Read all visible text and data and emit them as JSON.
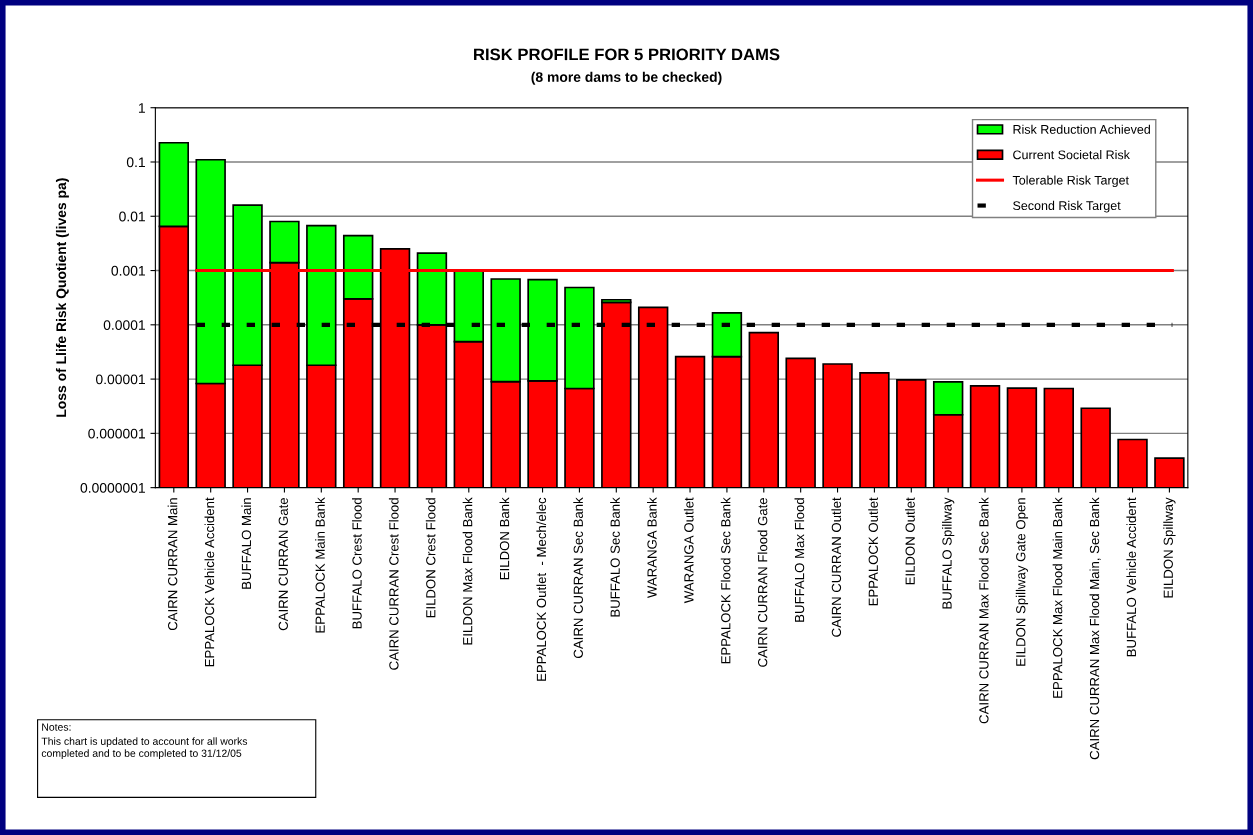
{
  "chart_data": {
    "type": "bar",
    "title": "RISK PROFILE FOR 5 PRIORITY DAMS",
    "subtitle": "(8 more dams to be checked)",
    "ylabel": "Loss of Llife Risk Quotient (lives pa)",
    "categories": [
      "CAIRN CURRAN Main",
      "EPPALOCK Vehicle Accident",
      "BUFFALO Main",
      "CAIRN CURRAN Gate",
      "EPPALOCK Main Bank",
      "BUFFALO Crest Flood",
      "CAIRN CURRAN Crest Flood",
      "EILDON Crest Flood",
      "EILDON Max Flood Bank",
      "EILDON Bank",
      "EPPALOCK Outlet  - Mech/elec",
      "CAIRN CURRAN Sec Bank",
      "BUFFALO Sec Bank",
      "WARANGA Bank",
      "WARANGA Outlet",
      "EPPALOCK Flood Sec Bank",
      "CAIRN CURRAN Flood Gate",
      "BUFFALO Max Flood",
      "CAIRN CURRAN Outlet",
      "EPPALOCK Outlet",
      "EILDON Outlet",
      "BUFFALO Spillway",
      "CAIRN CURRAN Max Flood Sec Bank",
      "EILDON Spillway Gate Open",
      "EPPALOCK Max Flood Main Bank",
      "CAIRN CURRAN Max Flood Main, Sec Bank",
      "BUFFALO Vehicle Accident",
      "EILDON Spillway"
    ],
    "series": [
      {
        "name": "Current Societal Risk",
        "color": "#ff0000",
        "values": [
          0.0065,
          8.3e-06,
          1.8e-05,
          0.0014,
          1.8e-05,
          0.0003,
          0.0025,
          0.0001,
          4.9e-05,
          9e-06,
          9.3e-06,
          6.7e-06,
          0.00026,
          0.00021,
          2.6e-05,
          2.6e-05,
          7.2e-05,
          2.4e-05,
          1.9e-05,
          1.3e-05,
          9.7e-06,
          2.2e-06,
          7.5e-06,
          6.8e-06,
          6.7e-06,
          2.9e-06,
          7.7e-07,
          3.5e-07
        ]
      },
      {
        "name": "Risk Reduction Achieved",
        "color": "#00ff00",
        "values": [
          0.22,
          0.11,
          0.016,
          0.0066,
          0.0067,
          0.0041,
          null,
          0.002,
          0.00095,
          0.00069,
          0.00067,
          0.00048,
          3e-05,
          null,
          null,
          0.00014,
          null,
          null,
          null,
          null,
          null,
          6.7e-06,
          null,
          null,
          null,
          null,
          null,
          null
        ]
      }
    ],
    "stacked": true,
    "ref_lines": [
      {
        "axis": "y",
        "value": 0.001,
        "label": "Tolerable Risk Target",
        "color": "#ff0000",
        "line_style": "solid"
      },
      {
        "axis": "y",
        "value": 0.0001,
        "label": "Second Risk Target",
        "color": "#000000",
        "line_style": "dotted"
      }
    ],
    "log": "y",
    "ylim": [
      1e-07,
      1
    ],
    "yticks": [
      {
        "value": 1e-07,
        "label": "0.0000001"
      },
      {
        "value": 1e-06,
        "label": "0.000001"
      },
      {
        "value": 1e-05,
        "label": "0.00001"
      },
      0.0001,
      0.001,
      0.01,
      0.1,
      1
    ],
    "grid": "y",
    "legend": "top right",
    "annotations": [
      "Notes:",
      "This chart is updated to account for all works\ncompleted and to be completed to 31/12/05"
    ]
  }
}
